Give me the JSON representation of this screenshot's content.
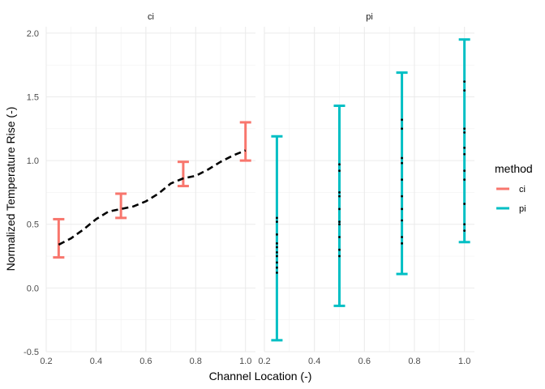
{
  "chart_data": {
    "type": "errorbar-facet",
    "xlabel": "Channel Location (-)",
    "ylabel": "Normalized Temperature Rise (-)",
    "xlim": [
      0.2,
      1.04
    ],
    "ylim": [
      -0.5,
      2.05
    ],
    "x_ticks": [
      0.2,
      0.4,
      0.6,
      0.8,
      1.0
    ],
    "x_tick_labels": [
      "0.2",
      "0.4",
      "0.6",
      "0.8",
      "1.0"
    ],
    "y_ticks": [
      -0.5,
      0.0,
      0.5,
      1.0,
      1.5,
      2.0
    ],
    "y_tick_labels": [
      "-0.5",
      "0.0",
      "0.5",
      "1.0",
      "1.5",
      "2.0"
    ],
    "grid": true,
    "legend": {
      "title": "method",
      "position": "right",
      "entries": [
        {
          "label": "ci",
          "color": "#F8766D"
        },
        {
          "label": "pi",
          "color": "#00BFC4"
        }
      ]
    },
    "facets": [
      {
        "label": "ci",
        "color": "#F8766D",
        "intervals": [
          {
            "x": 0.25,
            "low": 0.24,
            "high": 0.54
          },
          {
            "x": 0.5,
            "low": 0.55,
            "high": 0.74
          },
          {
            "x": 0.75,
            "low": 0.8,
            "high": 0.99
          },
          {
            "x": 1.0,
            "low": 1.0,
            "high": 1.3
          }
        ],
        "mean_line": {
          "x": [
            0.25,
            0.3,
            0.35,
            0.4,
            0.45,
            0.5,
            0.55,
            0.6,
            0.65,
            0.7,
            0.75,
            0.8,
            0.85,
            0.9,
            0.95,
            1.0
          ],
          "y": [
            0.34,
            0.39,
            0.46,
            0.54,
            0.6,
            0.62,
            0.64,
            0.68,
            0.74,
            0.82,
            0.86,
            0.88,
            0.93,
            0.99,
            1.04,
            1.08
          ]
        },
        "points": []
      },
      {
        "label": "pi",
        "color": "#00BFC4",
        "intervals": [
          {
            "x": 0.25,
            "low": -0.41,
            "high": 1.19
          },
          {
            "x": 0.5,
            "low": -0.14,
            "high": 1.43
          },
          {
            "x": 0.75,
            "low": 0.11,
            "high": 1.69
          },
          {
            "x": 1.0,
            "low": 0.36,
            "high": 1.95
          }
        ],
        "mean_line": {
          "x": [],
          "y": []
        },
        "points": [
          {
            "x": 0.25,
            "y": [
              0.12,
              0.16,
              0.2,
              0.25,
              0.28,
              0.32,
              0.35,
              0.42,
              0.52,
              0.55
            ]
          },
          {
            "x": 0.5,
            "y": [
              0.25,
              0.3,
              0.4,
              0.5,
              0.52,
              0.62,
              0.72,
              0.75,
              0.92,
              0.97
            ]
          },
          {
            "x": 0.75,
            "y": [
              0.35,
              0.4,
              0.53,
              0.62,
              0.72,
              0.85,
              0.98,
              1.02,
              1.25,
              1.32
            ]
          },
          {
            "x": 1.0,
            "y": [
              0.45,
              0.5,
              0.66,
              0.85,
              0.92,
              1.05,
              1.1,
              1.22,
              1.25,
              1.55,
              1.62
            ]
          }
        ]
      }
    ]
  }
}
